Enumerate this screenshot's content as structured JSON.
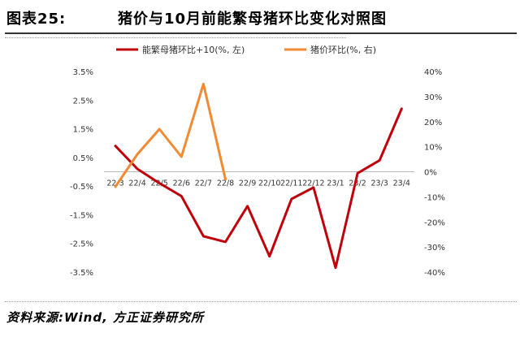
{
  "header": {
    "figure_label": "图表25:",
    "title": "猪价与10月前能繁母猪环比变化对照图"
  },
  "footer": {
    "source": "资料来源:Wind, 方正证券研究所"
  },
  "colors": {
    "series1": "#c0000b",
    "series2": "#f08b33",
    "axis": "#b9b9b9"
  },
  "chart_data": {
    "type": "line",
    "title": "",
    "categories": [
      "22/3",
      "22/4",
      "22/5",
      "22/6",
      "22/7",
      "22/8",
      "22/9",
      "22/10",
      "22/11",
      "22/12",
      "23/1",
      "23/2",
      "23/3",
      "23/4"
    ],
    "left_axis": {
      "ylim": [
        -3.5,
        3.5
      ],
      "ticks": [
        3.5,
        2.5,
        1.5,
        0.5,
        -0.5,
        -1.5,
        -2.5,
        -3.5
      ],
      "tick_labels": [
        "3.5%",
        "2.5%",
        "1.5%",
        "0.5%",
        "-0.5%",
        "-1.5%",
        "-2.5%",
        "-3.5%"
      ]
    },
    "right_axis": {
      "ylim": [
        -40,
        40
      ],
      "ticks": [
        40,
        30,
        20,
        10,
        0,
        -10,
        -20,
        -30,
        -40
      ],
      "tick_labels": [
        "40%",
        "30%",
        "20%",
        "10%",
        "0%",
        "-10%",
        "-20%",
        "-30%",
        "-40%"
      ]
    },
    "series": [
      {
        "name": "能繁母猪环比+10(%, 左)",
        "axis": "left",
        "values": [
          0.9,
          0.1,
          -0.4,
          -0.85,
          -2.25,
          -2.45,
          -1.2,
          -2.95,
          -0.95,
          -0.55,
          -3.35,
          -0.05,
          0.4,
          2.2
        ]
      },
      {
        "name": "猪价环比(%, 右)",
        "axis": "right",
        "values": [
          -6.0,
          7.0,
          17.0,
          6.0,
          35.0,
          -3.0,
          null,
          null,
          null,
          null,
          null,
          null,
          null,
          null
        ]
      }
    ],
    "legend_position": "top",
    "grid": false
  }
}
